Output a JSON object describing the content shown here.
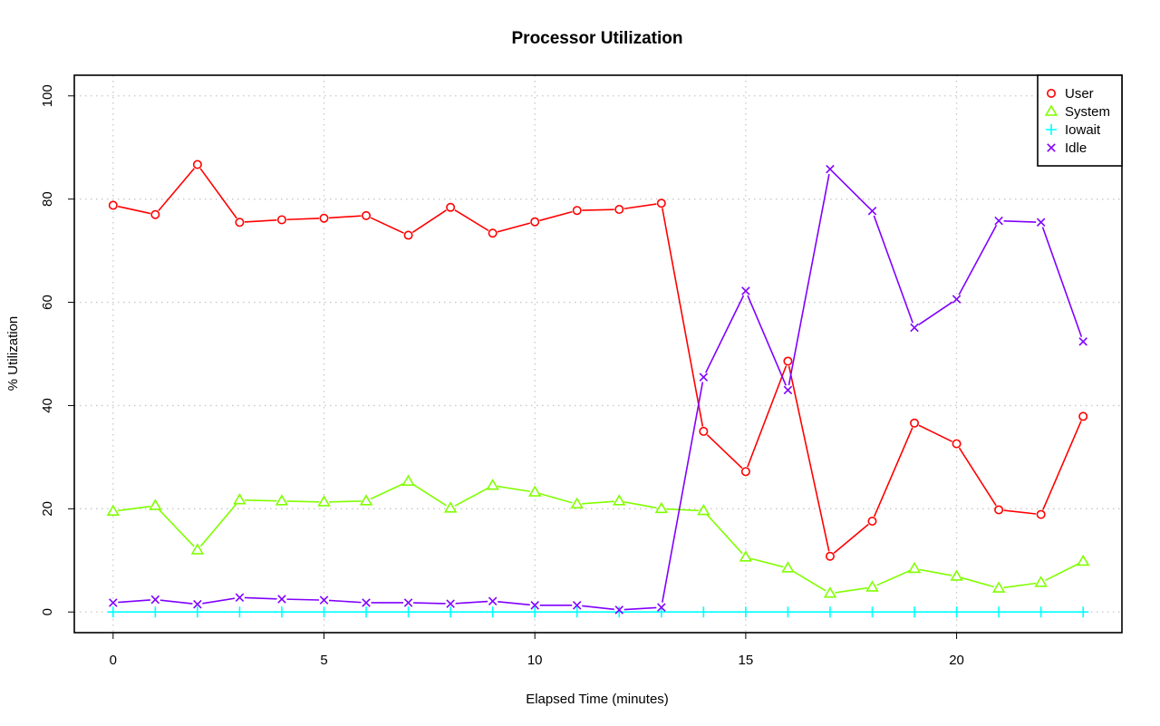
{
  "chart_data": {
    "type": "line",
    "title": "Processor Utilization",
    "xlabel": "Elapsed Time (minutes)",
    "ylabel": "% Utilization",
    "xlim": [
      -0.92,
      23.92
    ],
    "ylim": [
      -4,
      104
    ],
    "x_ticks": [
      0,
      5,
      10,
      15,
      20
    ],
    "y_ticks": [
      0,
      20,
      40,
      60,
      80,
      100
    ],
    "grid": true,
    "legend_position": "top-right",
    "x": [
      0,
      1,
      2,
      3,
      4,
      5,
      6,
      7,
      8,
      9,
      10,
      11,
      12,
      13,
      14,
      15,
      16,
      17,
      18,
      19,
      20,
      21,
      22,
      23
    ],
    "series": [
      {
        "name": "User",
        "color": "#ff0000",
        "marker": "circle",
        "values": [
          78.8,
          77.0,
          86.7,
          75.5,
          76.0,
          76.3,
          76.8,
          73.0,
          78.4,
          73.4,
          75.6,
          77.8,
          78.0,
          79.2,
          35.0,
          27.2,
          48.6,
          10.8,
          17.6,
          36.6,
          32.6,
          19.8,
          18.9,
          37.9
        ]
      },
      {
        "name": "System",
        "color": "#80ff00",
        "marker": "triangle",
        "values": [
          19.5,
          20.6,
          12.0,
          21.7,
          21.5,
          21.3,
          21.5,
          25.3,
          20.1,
          24.5,
          23.2,
          20.9,
          21.5,
          20.0,
          19.6,
          10.6,
          8.5,
          3.6,
          4.8,
          8.4,
          6.9,
          4.6,
          5.7,
          9.8
        ]
      },
      {
        "name": "Iowait",
        "color": "#00ffff",
        "marker": "plus",
        "values": [
          0,
          0,
          0,
          0,
          0,
          0,
          0,
          0,
          0,
          0,
          0,
          0,
          0,
          0,
          0,
          0,
          0,
          0,
          0,
          0,
          0,
          0,
          0,
          0
        ]
      },
      {
        "name": "Idle",
        "color": "#8000ff",
        "marker": "cross",
        "values": [
          1.8,
          2.4,
          1.5,
          2.8,
          2.5,
          2.3,
          1.8,
          1.8,
          1.6,
          2.1,
          1.3,
          1.3,
          0.4,
          0.9,
          45.5,
          62.2,
          43.0,
          85.8,
          77.7,
          55.1,
          60.6,
          75.8,
          75.5,
          52.4
        ]
      }
    ]
  }
}
